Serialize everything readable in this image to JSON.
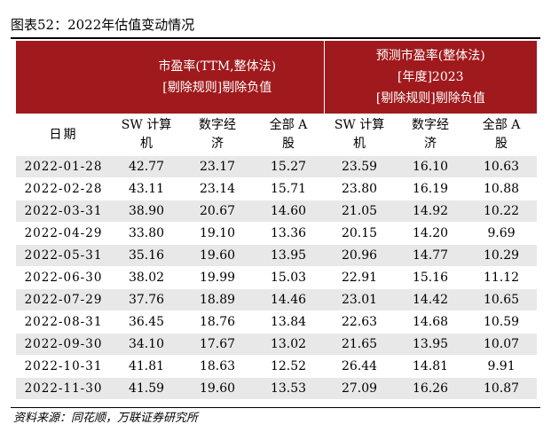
{
  "title": "图表52：2022年估值变动情况",
  "header": {
    "group1_line1": "市盈率(TTM,整体法)",
    "group1_line2": "[剔除规则]剔除负值",
    "group2_line1": "预测市盈率(整体法)",
    "group2_line2": "[年度]2023",
    "group2_line3": "[剔除规则]剔除负值"
  },
  "columns": {
    "date": "日期",
    "c1_line1": "SW 计算",
    "c1_line2": "机",
    "c2_line1": "数字经",
    "c2_line2": "济",
    "c3_line1": "全部 A",
    "c3_line2": "股",
    "c4_line1": "SW 计算",
    "c4_line2": "机",
    "c5_line1": "数字经",
    "c5_line2": "济",
    "c6_line1": "全部 A",
    "c6_line2": "股"
  },
  "rows": [
    {
      "date": "2022-01-28",
      "v1": "42.77",
      "v2": "23.17",
      "v3": "15.27",
      "v4": "23.59",
      "v5": "16.10",
      "v6": "10.63"
    },
    {
      "date": "2022-02-28",
      "v1": "43.11",
      "v2": "23.14",
      "v3": "15.71",
      "v4": "23.80",
      "v5": "16.19",
      "v6": "10.88"
    },
    {
      "date": "2022-03-31",
      "v1": "38.90",
      "v2": "20.67",
      "v3": "14.60",
      "v4": "21.05",
      "v5": "14.92",
      "v6": "10.22"
    },
    {
      "date": "2022-04-29",
      "v1": "33.80",
      "v2": "19.10",
      "v3": "13.36",
      "v4": "20.15",
      "v5": "14.20",
      "v6": "9.69"
    },
    {
      "date": "2022-05-31",
      "v1": "35.16",
      "v2": "19.60",
      "v3": "13.95",
      "v4": "20.96",
      "v5": "14.77",
      "v6": "10.29"
    },
    {
      "date": "2022-06-30",
      "v1": "38.02",
      "v2": "19.99",
      "v3": "15.03",
      "v4": "22.91",
      "v5": "15.16",
      "v6": "11.12"
    },
    {
      "date": "2022-07-29",
      "v1": "37.76",
      "v2": "18.89",
      "v3": "14.46",
      "v4": "23.01",
      "v5": "14.42",
      "v6": "10.65"
    },
    {
      "date": "2022-08-31",
      "v1": "36.45",
      "v2": "18.76",
      "v3": "13.84",
      "v4": "22.63",
      "v5": "14.68",
      "v6": "10.59"
    },
    {
      "date": "2022-09-30",
      "v1": "34.10",
      "v2": "17.67",
      "v3": "13.02",
      "v4": "21.65",
      "v5": "13.95",
      "v6": "10.07"
    },
    {
      "date": "2022-10-31",
      "v1": "41.81",
      "v2": "18.63",
      "v3": "12.52",
      "v4": "26.44",
      "v5": "14.81",
      "v6": "9.91"
    },
    {
      "date": "2022-11-30",
      "v1": "41.59",
      "v2": "19.60",
      "v3": "13.53",
      "v4": "27.09",
      "v5": "16.26",
      "v6": "10.87"
    }
  ],
  "source": "资料来源：同花顺，万联证券研究所",
  "colors": {
    "header_bg": "#a01a1d",
    "header_text": "#ffffff",
    "alt_row_bg": "#e8e8e8"
  }
}
